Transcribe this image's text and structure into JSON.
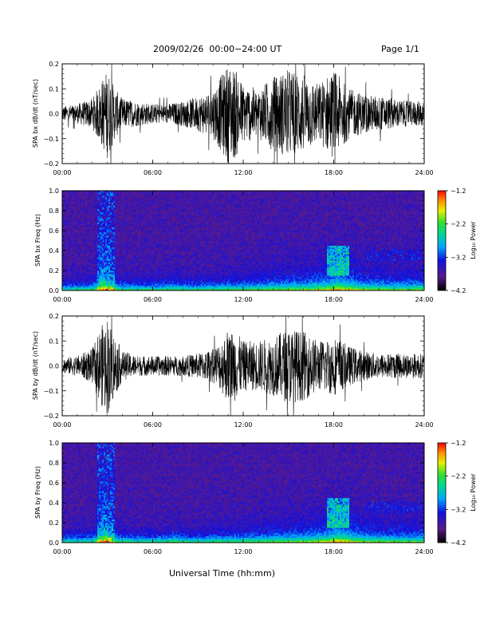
{
  "header": {
    "title": "2009/02/26  00:00−24:00 UT",
    "page": "Page 1/1"
  },
  "x_axis_title": "Universal Time (hh:mm)",
  "chart_data": [
    {
      "type": "line",
      "ylabel": "SPA bx dB/dt (nT/sec)",
      "xlim": [
        0,
        24
      ],
      "ylim": [
        -0.2,
        0.2
      ],
      "x_ticks": [
        "00:00",
        "06:00",
        "12:00",
        "18:00",
        "24:00"
      ],
      "y_ticks": [
        "0.2",
        "0.1",
        "0.0",
        "−0.1",
        "−0.2"
      ],
      "envelope": {
        "x": [
          0,
          1,
          2,
          2.5,
          3,
          3.5,
          4,
          5,
          6,
          7,
          8,
          9,
          10,
          10.5,
          11,
          11.5,
          12,
          13,
          14,
          15,
          16,
          17,
          18,
          19,
          20,
          21,
          22,
          23,
          24
        ],
        "amp": [
          0.03,
          0.04,
          0.06,
          0.12,
          0.18,
          0.1,
          0.06,
          0.05,
          0.04,
          0.04,
          0.05,
          0.07,
          0.1,
          0.15,
          0.2,
          0.18,
          0.12,
          0.1,
          0.15,
          0.18,
          0.16,
          0.12,
          0.18,
          0.1,
          0.08,
          0.07,
          0.06,
          0.05,
          0.05
        ]
      }
    },
    {
      "type": "heatmap",
      "ylabel": "SPA bx Freq (Hz)",
      "xlim": [
        0,
        24
      ],
      "ylim": [
        0,
        1
      ],
      "x_ticks": [
        "00:00",
        "06:00",
        "12:00",
        "18:00",
        "24:00"
      ],
      "y_ticks": [
        "1.0",
        "0.8",
        "0.6",
        "0.4",
        "0.2",
        "0.0"
      ],
      "colorbar": {
        "label": "Log₁₀ Power",
        "range": [
          -4.2,
          -1.2
        ],
        "ticks": [
          "−1.2",
          "−2.2",
          "−3.2",
          "−4.2"
        ]
      }
    },
    {
      "type": "line",
      "ylabel": "SPA by dB/dt (nT/sec)",
      "xlim": [
        0,
        24
      ],
      "ylim": [
        -0.2,
        0.2
      ],
      "x_ticks": [
        "00:00",
        "06:00",
        "12:00",
        "18:00",
        "24:00"
      ],
      "y_ticks": [
        "0.2",
        "0.1",
        "0.0",
        "−0.1",
        "−0.2"
      ],
      "envelope": {
        "x": [
          0,
          1,
          2,
          2.5,
          3,
          3.5,
          4,
          5,
          6,
          7,
          8,
          9,
          10,
          10.5,
          11,
          11.5,
          12,
          13,
          14,
          15,
          16,
          17,
          18,
          19,
          20,
          21,
          22,
          23,
          24
        ],
        "amp": [
          0.03,
          0.04,
          0.07,
          0.15,
          0.2,
          0.12,
          0.06,
          0.04,
          0.04,
          0.04,
          0.04,
          0.05,
          0.07,
          0.1,
          0.15,
          0.14,
          0.1,
          0.1,
          0.12,
          0.15,
          0.14,
          0.1,
          0.12,
          0.08,
          0.06,
          0.05,
          0.05,
          0.05,
          0.05
        ]
      }
    },
    {
      "type": "heatmap",
      "ylabel": "SPA by Freq (Hz)",
      "xlim": [
        0,
        24
      ],
      "ylim": [
        0,
        1
      ],
      "x_ticks": [
        "00:00",
        "06:00",
        "12:00",
        "18:00",
        "24:00"
      ],
      "y_ticks": [
        "1.0",
        "0.8",
        "0.6",
        "0.4",
        "0.2",
        "0.0"
      ],
      "colorbar": {
        "label": "Log₁₀ Power",
        "range": [
          -4.2,
          -1.2
        ],
        "ticks": [
          "−1.2",
          "−2.2",
          "−3.2",
          "−4.2"
        ]
      }
    }
  ],
  "colors": {
    "trace": "#000000",
    "background": "#ffffff"
  }
}
